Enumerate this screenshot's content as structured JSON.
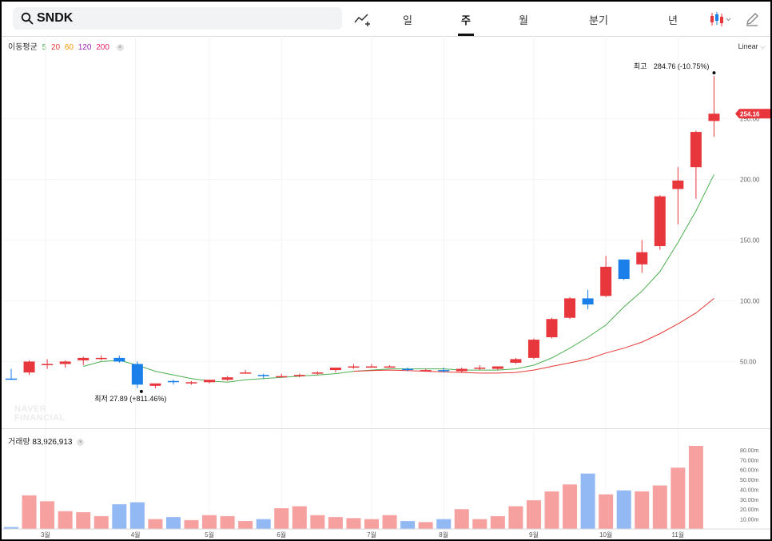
{
  "search": {
    "symbol": "SNDK"
  },
  "tabs": [
    {
      "label": "일",
      "active": false
    },
    {
      "label": "주",
      "active": true
    },
    {
      "label": "월",
      "active": false
    },
    {
      "label": "분기",
      "active": false
    },
    {
      "label": "년",
      "active": false
    }
  ],
  "toolbar": {
    "draw_icon": "trend-line-add-icon",
    "chart_type_icon": "candlestick-icon",
    "pencil_icon": "pencil-icon"
  },
  "moving_average": {
    "label": "이동평균",
    "periods": [
      "5",
      "20",
      "60",
      "120",
      "200"
    ],
    "colors": [
      "#4caf50",
      "#e53935",
      "#ff9800",
      "#9c27b0",
      "#e91e63"
    ]
  },
  "scale_mode": "Linear",
  "watermark": [
    "NAVER",
    "FINANCIAL"
  ],
  "colors": {
    "up": "#e8363d",
    "down": "#1a7fe8",
    "vol_up": "#f6a0a0",
    "vol_down": "#93b9f5"
  },
  "chart_data": {
    "type": "candlestick",
    "y_ticks": [
      50,
      100,
      150,
      200,
      250
    ],
    "y_tick_labels": [
      "50.00",
      "100.00",
      "150.00",
      "200.00",
      "250.00"
    ],
    "ylim": [
      22,
      293
    ],
    "last_price_label": "254.16",
    "high_annotation": {
      "label": "최고",
      "value": "284.76 (-10.75%)"
    },
    "low_annotation": {
      "label": "최저",
      "value": "27.89 (+811.46%)"
    },
    "x_month_labels": [
      "3월",
      "4월",
      "5월",
      "6월",
      "7월",
      "8월",
      "9월",
      "10월",
      "11월"
    ],
    "x_month_positions": [
      1.9,
      6.9,
      11.0,
      15.0,
      20.0,
      24.0,
      29.0,
      33.0,
      37.0
    ],
    "candles": [
      {
        "o": 36,
        "h": 44,
        "l": 35,
        "c": 35
      },
      {
        "o": 41,
        "h": 51,
        "l": 39,
        "c": 50
      },
      {
        "o": 47,
        "h": 52,
        "l": 44,
        "c": 48
      },
      {
        "o": 48,
        "h": 51,
        "l": 45,
        "c": 50
      },
      {
        "o": 51,
        "h": 54,
        "l": 47,
        "c": 53
      },
      {
        "o": 53,
        "h": 55,
        "l": 51,
        "c": 53
      },
      {
        "o": 53,
        "h": 55,
        "l": 49,
        "c": 50
      },
      {
        "o": 48,
        "h": 50,
        "l": 28,
        "c": 31
      },
      {
        "o": 30,
        "h": 31,
        "l": 28,
        "c": 32
      },
      {
        "o": 34,
        "h": 35,
        "l": 31,
        "c": 33
      },
      {
        "o": 32,
        "h": 34,
        "l": 31,
        "c": 33
      },
      {
        "o": 33,
        "h": 35,
        "l": 32,
        "c": 35
      },
      {
        "o": 35,
        "h": 38,
        "l": 34,
        "c": 37
      },
      {
        "o": 41,
        "h": 43,
        "l": 40,
        "c": 41
      },
      {
        "o": 39,
        "h": 40,
        "l": 36,
        "c": 38
      },
      {
        "o": 38,
        "h": 40,
        "l": 37,
        "c": 38
      },
      {
        "o": 38,
        "h": 40,
        "l": 37,
        "c": 39
      },
      {
        "o": 40,
        "h": 42,
        "l": 39,
        "c": 41
      },
      {
        "o": 43,
        "h": 45,
        "l": 41,
        "c": 45
      },
      {
        "o": 46,
        "h": 48,
        "l": 44,
        "c": 46
      },
      {
        "o": 46,
        "h": 48,
        "l": 45,
        "c": 46
      },
      {
        "o": 46,
        "h": 47,
        "l": 45,
        "c": 46
      },
      {
        "o": 44,
        "h": 45,
        "l": 42,
        "c": 43
      },
      {
        "o": 43,
        "h": 44,
        "l": 42,
        "c": 43
      },
      {
        "o": 43,
        "h": 45,
        "l": 41,
        "c": 42
      },
      {
        "o": 42,
        "h": 45,
        "l": 41,
        "c": 44
      },
      {
        "o": 45,
        "h": 47,
        "l": 43,
        "c": 45
      },
      {
        "o": 44,
        "h": 46,
        "l": 43,
        "c": 46
      },
      {
        "o": 49,
        "h": 53,
        "l": 48,
        "c": 52
      },
      {
        "o": 53,
        "h": 69,
        "l": 52,
        "c": 68
      },
      {
        "o": 70,
        "h": 86,
        "l": 69,
        "c": 85
      },
      {
        "o": 86,
        "h": 103,
        "l": 85,
        "c": 102
      },
      {
        "o": 102,
        "h": 109,
        "l": 93,
        "c": 97
      },
      {
        "o": 104,
        "h": 137,
        "l": 103,
        "c": 128
      },
      {
        "o": 134,
        "h": 134,
        "l": 117,
        "c": 118
      },
      {
        "o": 130,
        "h": 150,
        "l": 123,
        "c": 140
      },
      {
        "o": 145,
        "h": 187,
        "l": 142,
        "c": 186
      },
      {
        "o": 192,
        "h": 210,
        "l": 163,
        "c": 199
      },
      {
        "o": 210,
        "h": 240,
        "l": 184,
        "c": 239
      },
      {
        "o": 248,
        "h": 285,
        "l": 235,
        "c": 254
      }
    ],
    "ma5": [
      null,
      null,
      null,
      null,
      46,
      50,
      51,
      47,
      42,
      39,
      36,
      34,
      33,
      35,
      36,
      37,
      38,
      39,
      40,
      42,
      43,
      44,
      44,
      44,
      44,
      43,
      43,
      43,
      44,
      47,
      53,
      61,
      70,
      80,
      95,
      108,
      124,
      148,
      174,
      204
    ],
    "ma20": [
      null,
      null,
      null,
      null,
      null,
      null,
      null,
      null,
      null,
      null,
      null,
      null,
      null,
      null,
      null,
      null,
      null,
      null,
      null,
      42,
      42.5,
      43,
      42.5,
      42,
      41.5,
      41,
      40.5,
      40.5,
      41,
      43,
      46,
      49,
      52,
      57,
      61,
      66,
      73,
      81,
      90,
      102
    ],
    "volume_label": "거래량",
    "volume_value": "83,926,913",
    "volume_ticks": [
      10,
      20,
      30,
      40,
      50,
      60,
      70,
      80
    ],
    "volume_tick_labels": [
      "10.00m",
      "20.00m",
      "30.00m",
      "40.00m",
      "50.00m",
      "60.00m",
      "70.00m",
      "80.00m"
    ],
    "volume_max": 88,
    "volume": [
      2,
      34,
      28,
      18,
      17,
      13,
      25,
      27,
      10,
      12,
      9,
      14,
      13,
      8,
      10,
      21,
      23,
      14,
      12,
      11,
      10,
      14,
      8,
      7,
      10,
      20,
      10,
      13,
      23,
      29,
      38,
      45,
      56,
      35,
      39,
      38,
      44,
      62,
      84,
      0
    ]
  }
}
